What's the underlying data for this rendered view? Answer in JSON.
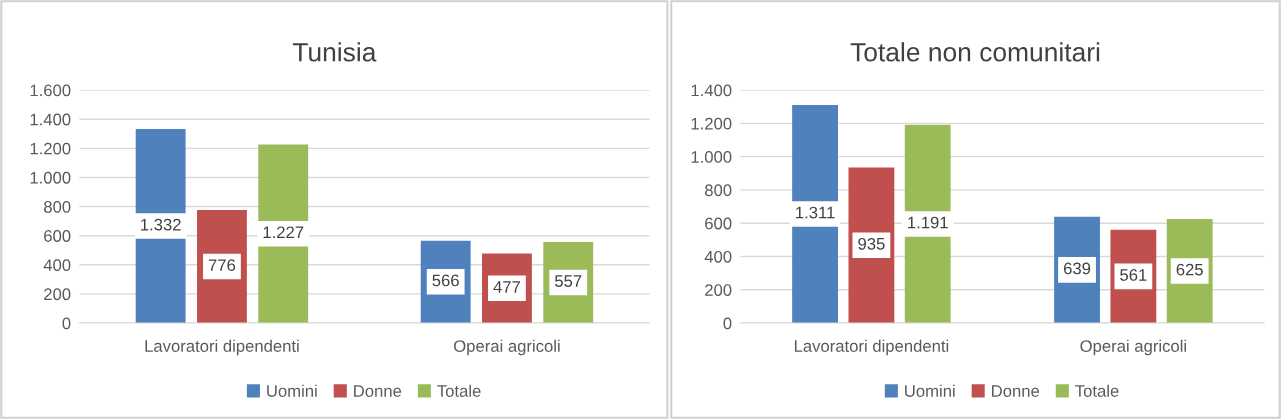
{
  "chart_data": [
    {
      "type": "bar",
      "title": "Tunisia",
      "categories": [
        "Lavoratori dipendenti",
        "Operai agricoli"
      ],
      "series": [
        {
          "name": "Uomini",
          "color": "#4f81bd",
          "values": [
            1332,
            566
          ],
          "value_labels": [
            "1.332",
            "566"
          ]
        },
        {
          "name": "Donne",
          "color": "#c0504d",
          "values": [
            776,
            477
          ],
          "value_labels": [
            "776",
            "477"
          ]
        },
        {
          "name": "Totale",
          "color": "#9bbb59",
          "values": [
            1227,
            557
          ],
          "value_labels": [
            "1.227",
            "557"
          ]
        }
      ],
      "ylim": [
        0,
        1600
      ],
      "yticks": [
        0,
        200,
        400,
        600,
        800,
        {
          "value": 1000,
          "label": "1.000"
        },
        {
          "value": 1200,
          "label": "1.200"
        },
        {
          "value": 1400,
          "label": "1.400"
        },
        {
          "value": 1600,
          "label": "1.600"
        }
      ],
      "grid": "y",
      "legend": "bottom"
    },
    {
      "type": "bar",
      "title": "Totale non comunitari",
      "categories": [
        "Lavoratori dipendenti",
        "Operai agricoli"
      ],
      "series": [
        {
          "name": "Uomini",
          "color": "#4f81bd",
          "values": [
            1311,
            639
          ],
          "value_labels": [
            "1.311",
            "639"
          ]
        },
        {
          "name": "Donne",
          "color": "#c0504d",
          "values": [
            935,
            561
          ],
          "value_labels": [
            "935",
            "561"
          ]
        },
        {
          "name": "Totale",
          "color": "#9bbb59",
          "values": [
            1191,
            625
          ],
          "value_labels": [
            "1.191",
            "625"
          ]
        }
      ],
      "ylim": [
        0,
        1400
      ],
      "yticks": [
        0,
        200,
        400,
        600,
        800,
        {
          "value": 1000,
          "label": "1.000"
        },
        {
          "value": 1200,
          "label": "1.200"
        },
        {
          "value": 1400,
          "label": "1.400"
        }
      ],
      "grid": "y",
      "legend": "bottom"
    }
  ]
}
